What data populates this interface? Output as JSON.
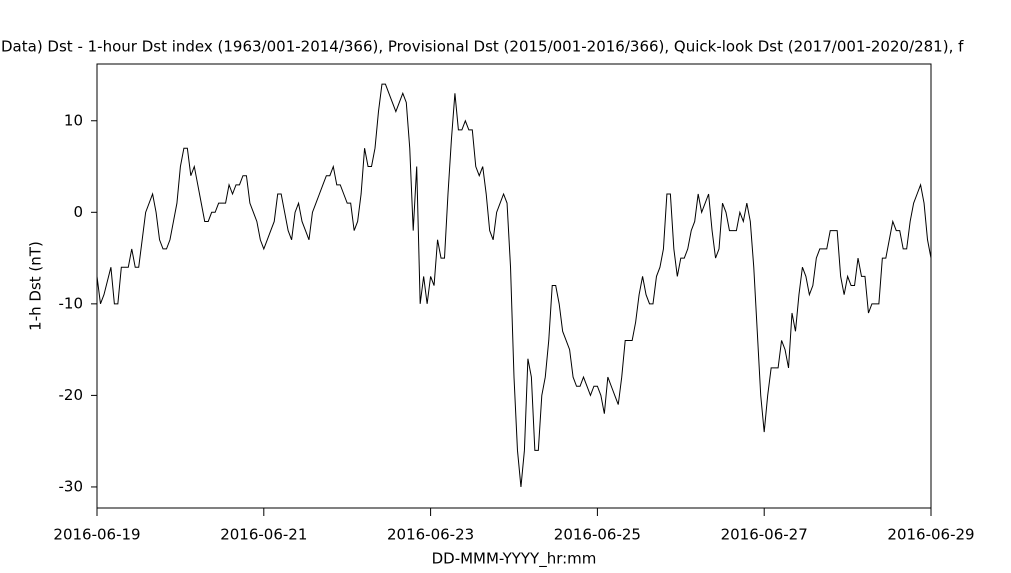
{
  "chart_data": {
    "type": "line",
    "title": "Data)  Dst - 1-hour Dst index (1963/001-2014/366), Provisional Dst (2015/001-2016/366), Quick-look Dst (2017/001-2020/281), f",
    "xlabel": "DD-MMM-YYYY_hr:mm",
    "ylabel": "1-h Dst (nT)",
    "xlim": [
      0,
      240
    ],
    "ylim": [
      -32.3,
      16.2
    ],
    "xticks": [
      {
        "value": 0,
        "label": "2016-06-19"
      },
      {
        "value": 48,
        "label": "2016-06-21"
      },
      {
        "value": 96,
        "label": "2016-06-23"
      },
      {
        "value": 144,
        "label": "2016-06-25"
      },
      {
        "value": 192,
        "label": "2016-06-27"
      },
      {
        "value": 240,
        "label": "2016-06-29"
      }
    ],
    "yticks": [
      10,
      0,
      -10,
      -20,
      -30
    ],
    "series": [
      {
        "color": "#000000",
        "x": [
          0,
          1,
          2,
          4,
          5,
          6,
          7,
          9,
          10,
          11,
          12,
          13,
          14,
          16,
          17,
          18,
          19,
          20,
          21,
          22,
          23,
          24,
          25,
          26,
          27,
          28,
          29,
          30,
          31,
          32,
          33,
          34,
          35,
          37,
          38,
          39,
          40,
          41,
          42,
          43,
          44,
          46,
          47,
          48,
          49,
          50,
          51,
          52,
          53,
          54,
          55,
          56,
          57,
          58,
          59,
          60,
          61,
          62,
          63,
          64,
          65,
          66,
          67,
          68,
          69,
          70,
          71,
          72,
          73,
          74,
          75,
          76,
          77,
          78,
          79,
          80,
          81,
          82,
          83,
          84,
          85,
          86,
          87,
          88,
          89,
          90,
          91,
          92,
          93,
          94,
          95,
          96,
          97,
          98,
          99,
          100,
          101,
          102,
          103,
          104,
          105,
          106,
          107,
          108,
          109,
          110,
          111,
          112,
          113,
          114,
          115,
          116,
          117,
          118,
          119,
          120,
          121,
          122,
          123,
          124,
          125,
          126,
          127,
          128,
          129,
          130,
          131,
          132,
          133,
          134,
          135,
          136,
          137,
          138,
          139,
          140,
          141,
          142,
          143,
          144,
          145,
          146,
          147,
          148,
          149,
          150,
          151,
          152,
          153,
          154,
          155,
          156,
          157,
          158,
          159,
          160,
          161,
          162,
          163,
          164,
          165,
          166,
          167,
          168,
          169,
          170,
          171,
          172,
          173,
          174,
          175,
          176,
          177,
          178,
          179,
          180,
          181,
          182,
          183,
          184,
          185,
          186,
          187,
          188,
          189,
          190,
          191,
          192,
          193,
          194,
          195,
          196,
          197,
          198,
          199,
          200,
          201,
          202,
          203,
          204,
          205,
          206,
          207,
          208,
          209,
          210,
          211,
          212,
          213,
          214,
          215,
          216,
          217,
          218,
          219,
          220,
          221,
          222,
          223,
          224,
          225,
          226,
          227,
          228,
          229,
          230,
          231,
          232,
          233,
          234,
          235,
          236,
          237,
          238,
          239,
          240
        ],
        "values": [
          -7,
          -10,
          -9,
          -6,
          -10,
          -10,
          -6,
          -6,
          -4,
          -6,
          -6,
          -3,
          0,
          2,
          0,
          -3,
          -4,
          -4,
          -3,
          -1,
          1,
          5,
          7,
          7,
          4,
          5,
          3,
          1,
          -1,
          -1,
          0,
          0,
          1,
          1,
          3,
          2,
          3,
          3,
          4,
          4,
          1,
          -1,
          -3,
          -4,
          -3,
          -2,
          -1,
          2,
          2,
          0,
          -2,
          -3,
          0,
          1,
          -1,
          -2,
          -3,
          0,
          1,
          2,
          3,
          4,
          4,
          5,
          3,
          3,
          2,
          1,
          1,
          -2,
          -1,
          2,
          7,
          5,
          5,
          7,
          11,
          14,
          14,
          13,
          12,
          11,
          12,
          13,
          12,
          7,
          -2,
          5,
          -10,
          -7,
          -10,
          -7,
          -8,
          -3,
          -5,
          -5,
          2,
          8,
          13,
          9,
          9,
          10,
          9,
          9,
          5,
          4,
          5,
          2,
          -2,
          -3,
          0,
          1,
          2,
          1,
          -6,
          -18,
          -26,
          -30,
          -26,
          -16,
          -18,
          -26,
          -26,
          -20,
          -18,
          -14,
          -8,
          -8,
          -10,
          -13,
          -14,
          -15,
          -18,
          -19,
          -19,
          -18,
          -19,
          -20,
          -19,
          -19,
          -20,
          -22,
          -18,
          -19,
          -20,
          -21,
          -18,
          -14,
          -14,
          -14,
          -12,
          -9,
          -7,
          -9,
          -10,
          -10,
          -7,
          -6,
          -4,
          2,
          2,
          -4,
          -7,
          -5,
          -5,
          -4,
          -2,
          -1,
          2,
          0,
          1,
          2,
          -2,
          -5,
          -4,
          1,
          0,
          -2,
          -2,
          -2,
          0,
          -1,
          1,
          -1,
          -6,
          -13,
          -20,
          -24,
          -20,
          -17,
          -17,
          -17,
          -14,
          -15,
          -17,
          -11,
          -13,
          -9,
          -6,
          -7,
          -9,
          -8,
          -5,
          -4,
          -4,
          -4,
          -2,
          -2,
          -2,
          -7,
          -9,
          -7,
          -8,
          -8,
          -5,
          -7,
          -7,
          -11,
          -10,
          -10,
          -10,
          -5,
          -5,
          -3,
          -1,
          -2,
          -2,
          -4,
          -4,
          -1,
          1,
          2,
          3,
          1,
          -3,
          -5
        ]
      }
    ]
  }
}
